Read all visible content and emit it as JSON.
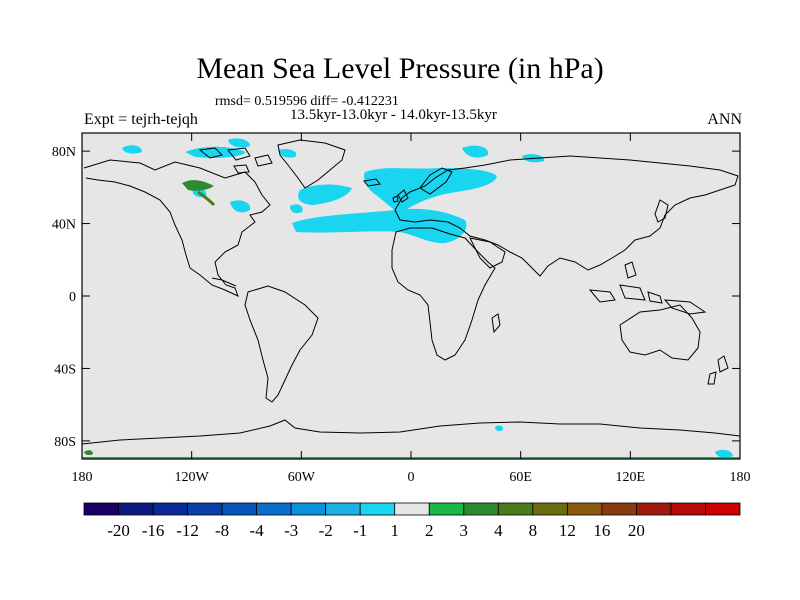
{
  "title": "Mean Sea Level Pressure (in hPa)",
  "stats_text": "rmsd= 0.519596 diff= -0.412231",
  "period_text": "13.5kyr-13.0kyr - 14.0kyr-13.5kyr",
  "experiment_text": "Expt = tejrh-tejqh",
  "season_text": "ANN",
  "map": {
    "projection": "cylindrical equidistant",
    "lat_ticks": [
      "80N",
      "40N",
      "0",
      "40S",
      "80S"
    ],
    "lat_values": [
      80,
      40,
      0,
      -40,
      -80
    ],
    "lon_ticks": [
      "180",
      "120W",
      "60W",
      "0",
      "60E",
      "120E",
      "180"
    ],
    "lon_values": [
      -180,
      -120,
      -60,
      0,
      60,
      120,
      180
    ],
    "background_color": "#e6e6e6"
  },
  "colorbar": {
    "colors": [
      "#1a0066",
      "#0d1a80",
      "#0a2a99",
      "#0a40aa",
      "#0a55bb",
      "#0a6ecc",
      "#0a90dd",
      "#1ab0e6",
      "#1ad5f0",
      "#e6e6e6",
      "#1ab84a",
      "#2e8a2e",
      "#4a7a1a",
      "#6b6b10",
      "#8a5a10",
      "#8a3a10",
      "#a01a10",
      "#b40a0a",
      "#cc0000"
    ],
    "labels": [
      "-20",
      "-16",
      "-12",
      "-8",
      "-4",
      "-3",
      "-2",
      "-1",
      "1",
      "2",
      "3",
      "4",
      "8",
      "12",
      "16",
      "20"
    ]
  }
}
